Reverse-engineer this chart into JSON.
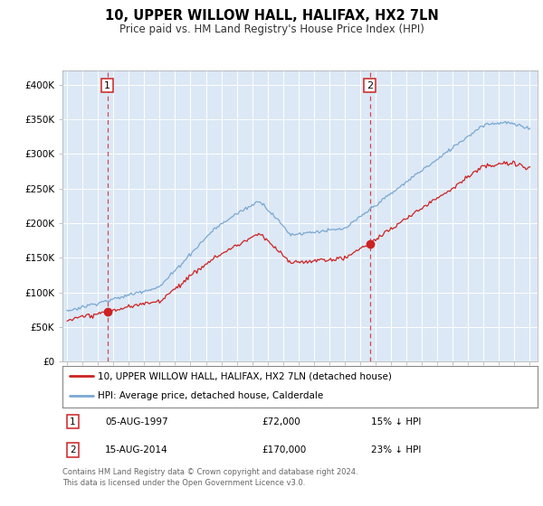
{
  "title": "10, UPPER WILLOW HALL, HALIFAX, HX2 7LN",
  "subtitle": "Price paid vs. HM Land Registry's House Price Index (HPI)",
  "legend_line1": "10, UPPER WILLOW HALL, HALIFAX, HX2 7LN (detached house)",
  "legend_line2": "HPI: Average price, detached house, Calderdale",
  "annotation1_date": "05-AUG-1997",
  "annotation1_price": "£72,000",
  "annotation1_hpi": "15% ↓ HPI",
  "annotation1_year": 1997.62,
  "annotation1_value": 72000,
  "annotation2_date": "15-AUG-2014",
  "annotation2_price": "£170,000",
  "annotation2_hpi": "23% ↓ HPI",
  "annotation2_year": 2014.62,
  "annotation2_value": 170000,
  "footer": "Contains HM Land Registry data © Crown copyright and database right 2024.\nThis data is licensed under the Open Government Licence v3.0.",
  "hpi_color": "#7aa8d2",
  "price_color": "#cc2222",
  "bg_color": "#dce8f5",
  "ylim": [
    0,
    420000
  ],
  "yticks": [
    0,
    50000,
    100000,
    150000,
    200000,
    250000,
    300000,
    350000,
    400000
  ],
  "xlim_left": 1994.7,
  "xlim_right": 2025.5
}
